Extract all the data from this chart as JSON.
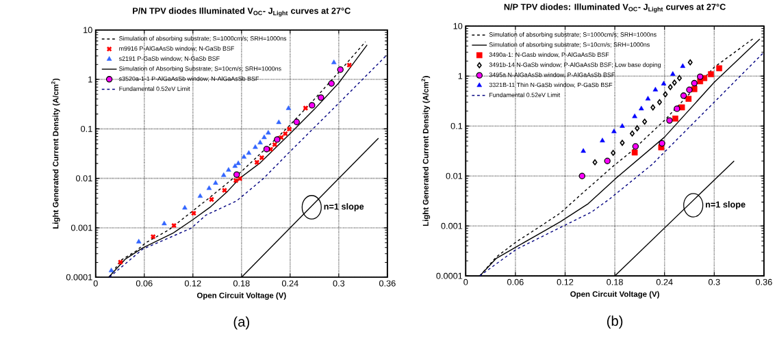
{
  "chart_data": [
    {
      "type": "line",
      "title": "P/N TPV diodes  Illuminated V$_{OC}$- J$_{Light}$ curves at 27°C",
      "xlabel": "Open Circuit Voltage (V)",
      "ylabel": "Light Generated Current Density (A/cm$^{2}$)",
      "xlim": [
        0,
        0.36
      ],
      "ylim": [
        0.0001,
        10
      ],
      "xticks": [
        0,
        0.06,
        0.12,
        0.18,
        0.24,
        0.3,
        0.36
      ],
      "yticks": [
        0.0001,
        0.001,
        0.01,
        0.1,
        1,
        10
      ],
      "log": "y",
      "grid": true,
      "legend": "top left",
      "annotations": [
        {
          "text": "n=1 slope",
          "x": 0.2666,
          "y": 0.0026
        },
        "(a)"
      ],
      "series": [
        {
          "name": "Simulation of absorbing substrate; S=1000cm/s; SRH=1000ns",
          "type": "line",
          "color": "#000000",
          "line_style": "dashed",
          "x": [
            0.017,
            0.031,
            0.05,
            0.062,
            0.09,
            0.12,
            0.14,
            0.16,
            0.18,
            0.21,
            0.24,
            0.27,
            0.3,
            0.333
          ],
          "values": [
            0.0001,
            0.00022,
            0.00034,
            0.0005,
            0.0009,
            0.0022,
            0.004,
            0.0074,
            0.0138,
            0.04,
            0.12,
            0.4,
            1.4,
            5.8
          ]
        },
        {
          "name": "m9916 P-AlGaAsSb window; N-GaSb BSF",
          "type": "scatter",
          "color": "#ff0000",
          "marker": "cross",
          "x": [
            0.0306,
            0.0709,
            0.0966,
            0.121,
            0.143,
            0.159,
            0.173,
            0.178,
            0.199,
            0.205,
            0.216,
            0.221,
            0.229,
            0.234,
            0.239,
            0.259,
            0.313
          ],
          "values": [
            0.000202,
            0.00066,
            0.00111,
            0.00197,
            0.00374,
            0.00572,
            0.009,
            0.0099,
            0.0211,
            0.0261,
            0.0387,
            0.048,
            0.067,
            0.08,
            0.099,
            0.263,
            1.95
          ]
        },
        {
          "name": "s2191 P-GaSb window; N-GaSb BSF",
          "type": "scatter",
          "color": "#3366ff",
          "marker": "triangle",
          "x": [
            0.0193,
            0.0532,
            0.0846,
            0.11,
            0.129,
            0.14,
            0.148,
            0.158,
            0.164,
            0.172,
            0.176,
            0.183,
            0.189,
            0.197,
            0.203,
            0.208,
            0.213,
            0.226,
            0.238,
            0.294
          ],
          "values": [
            0.000136,
            0.00052,
            0.00121,
            0.00252,
            0.00435,
            0.00627,
            0.008,
            0.0115,
            0.0147,
            0.0176,
            0.02,
            0.0269,
            0.0323,
            0.0425,
            0.0525,
            0.067,
            0.083,
            0.135,
            0.26,
            2.2
          ]
        },
        {
          "name": "Simulation of Absorbing Substrate; S=10cm/s; SRH=1000ns",
          "type": "line",
          "color": "#000000",
          "line_style": "solid",
          "x": [
            0.016,
            0.037,
            0.058,
            0.096,
            0.12,
            0.142,
            0.163,
            0.178,
            0.203,
            0.24,
            0.27,
            0.3,
            0.335
          ],
          "values": [
            0.0001,
            0.000235,
            0.00039,
            0.00079,
            0.00146,
            0.00267,
            0.0055,
            0.0101,
            0.0205,
            0.08,
            0.25,
            0.85,
            5.0
          ]
        },
        {
          "name": "s3520a-1-1 P-AlGaAsSb window; N-AlGaAsSb BSF",
          "type": "scatter",
          "color": "#ff00ff",
          "marker": "circle",
          "x": [
            0.174,
            0.211,
            0.224,
            0.248,
            0.267,
            0.278,
            0.291,
            0.302
          ],
          "values": [
            0.0119,
            0.039,
            0.061,
            0.138,
            0.3,
            0.43,
            0.83,
            1.58
          ]
        },
        {
          "name": "Fundamental 0.52eV Limit",
          "type": "line",
          "color": "#000080",
          "line_style": "dashed",
          "x": [
            0.017,
            0.058,
            0.118,
            0.136,
            0.174,
            0.207,
            0.24,
            0.3,
            0.36
          ],
          "values": [
            0.0001,
            0.00037,
            0.00098,
            0.0018,
            0.0035,
            0.0099,
            0.035,
            0.33,
            3.2
          ]
        },
        {
          "type": "line",
          "color": "#000000",
          "line_style": "solid",
          "x": [
            0.18,
            0.349
          ],
          "values": [
            0.0001,
            0.065
          ]
        }
      ]
    },
    {
      "type": "line",
      "title": "N/P TPV diodes: Illuminated V$_{OC}$- J$_{Light}$ curves at 27°C",
      "xlabel": "Open Circuit Voltage (V)",
      "ylabel": "Light Generated Current Density (A/cm$^{2}$)",
      "xlim": [
        0,
        0.36
      ],
      "ylim": [
        0.0001,
        10
      ],
      "xticks": [
        0,
        0.06,
        0.12,
        0.18,
        0.24,
        0.3,
        0.36
      ],
      "yticks": [
        0.0001,
        0.001,
        0.01,
        0.1,
        1,
        10
      ],
      "log": "y",
      "grid": true,
      "legend": "top left",
      "annotations": [
        {
          "text": "n=1 slope",
          "x": 0.2747,
          "y": 0.0026
        },
        "(b)"
      ],
      "series": [
        {
          "name": "Simulation of absorbing substrate; S=1000cm/s; SRH=1000ns",
          "type": "line",
          "color": "#000000",
          "line_style": "dashed",
          "x": [
            0.017,
            0.037,
            0.061,
            0.087,
            0.114,
            0.138,
            0.178,
            0.2,
            0.24,
            0.3,
            0.347
          ],
          "values": [
            0.0001,
            0.00024,
            0.00048,
            0.00091,
            0.0018,
            0.0041,
            0.0157,
            0.031,
            0.13,
            1.5,
            5.6
          ]
        },
        {
          "name": "Simulation of absorbing substrate; S=10cm/s; SRH=1000ns",
          "type": "line",
          "color": "#000000",
          "line_style": "solid",
          "x": [
            0.017,
            0.037,
            0.061,
            0.098,
            0.1145,
            0.148,
            0.181,
            0.24,
            0.3,
            0.355
          ],
          "values": [
            0.0001,
            0.000225,
            0.00038,
            0.00085,
            0.00122,
            0.0028,
            0.0089,
            0.06,
            0.75,
            5.5
          ]
        },
        {
          "name": "3490a-1: N-Gasb window, P-AlGaAsSb BSF",
          "type": "scatter",
          "color": "#ff0000",
          "marker": "square",
          "x": [
            0.204,
            0.236,
            0.253,
            0.261,
            0.269,
            0.276,
            0.283,
            0.288,
            0.296,
            0.306
          ],
          "values": [
            0.0295,
            0.0375,
            0.141,
            0.236,
            0.35,
            0.548,
            0.786,
            0.91,
            1.09,
            1.43
          ]
        },
        {
          "name": "3491b-14 N-GaSb window; P-AlGaAsSb BSF; Low base doping",
          "type": "scatter",
          "color": "#000000",
          "marker": "diamond",
          "x": [
            0.156,
            0.178,
            0.189,
            0.201,
            0.207,
            0.216,
            0.226,
            0.234,
            0.241,
            0.247,
            0.252,
            0.258,
            0.271
          ],
          "values": [
            0.0188,
            0.029,
            0.046,
            0.0707,
            0.09,
            0.122,
            0.236,
            0.3,
            0.43,
            0.6,
            0.74,
            0.91,
            1.88
          ]
        },
        {
          "name": "3495a N-AlGaAsSb window,  P-AlGaAsSb BSF",
          "type": "scatter",
          "color": "#ff00ff",
          "marker": "circle",
          "x": [
            0.1405,
            0.171,
            0.205,
            0.237,
            0.246,
            0.255,
            0.263,
            0.27,
            0.276,
            0.283
          ],
          "values": [
            0.01,
            0.02,
            0.039,
            0.045,
            0.129,
            0.222,
            0.405,
            0.53,
            0.72,
            0.97
          ]
        },
        {
          "name": "3321B-11 Thin N-GaSb window, P-GaSb BSF",
          "type": "scatter",
          "color": "#0000ff",
          "marker": "triangle",
          "x": [
            0.142,
            0.165,
            0.179,
            0.189,
            0.204,
            0.212,
            0.22,
            0.229,
            0.239,
            0.25,
            0.262
          ],
          "values": [
            0.0314,
            0.0508,
            0.0775,
            0.099,
            0.155,
            0.222,
            0.35,
            0.53,
            0.7,
            1.09,
            1.57
          ]
        },
        {
          "name": "Fundamental 0.52eV Limit",
          "type": "line",
          "color": "#000080",
          "line_style": "dashed",
          "x": [
            0.017,
            0.061,
            0.118,
            0.152,
            0.174,
            0.225,
            0.3,
            0.36
          ],
          "values": [
            0.0001,
            0.00034,
            0.001,
            0.0019,
            0.0035,
            0.017,
            0.3,
            3.0
          ]
        },
        {
          "type": "line",
          "color": "#000000",
          "line_style": "solid",
          "x": [
            0.18,
            0.324
          ],
          "values": [
            0.0001,
            0.02
          ]
        }
      ]
    }
  ]
}
